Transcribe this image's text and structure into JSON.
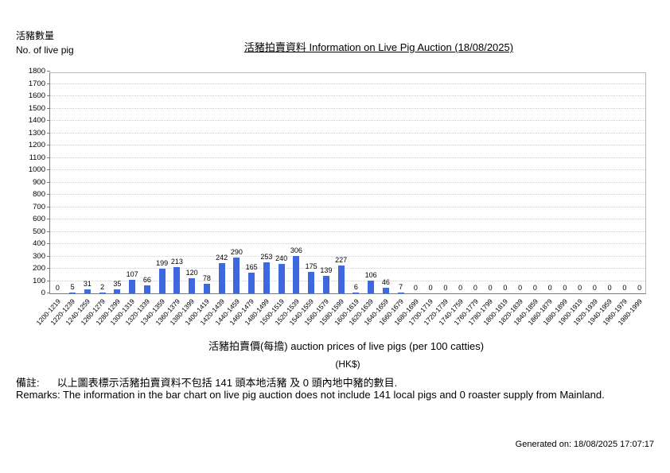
{
  "header": {
    "yaxis_zh": "活豬數量",
    "yaxis_en": "No. of live pig"
  },
  "title": "活豬拍賣資料 Information on Live Pig Auction (18/08/2025)",
  "chart_data": {
    "type": "bar",
    "title": "活豬拍賣資料 Information on Live Pig Auction (18/08/2025)",
    "categories": [
      "1200-1219",
      "1220-1239",
      "1240-1259",
      "1260-1279",
      "1280-1299",
      "1300-1319",
      "1320-1339",
      "1340-1359",
      "1360-1379",
      "1380-1399",
      "1400-1419",
      "1420-1439",
      "1440-1459",
      "1460-1479",
      "1480-1499",
      "1500-1519",
      "1520-1539",
      "1540-1559",
      "1560-1579",
      "1580-1599",
      "1600-1619",
      "1620-1639",
      "1640-1659",
      "1660-1679",
      "1680-1699",
      "1700-1719",
      "1720-1739",
      "1740-1759",
      "1760-1779",
      "1780-1799",
      "1800-1819",
      "1820-1839",
      "1840-1859",
      "1860-1879",
      "1880-1899",
      "1900-1919",
      "1920-1939",
      "1940-1959",
      "1960-1979",
      "1980-1999"
    ],
    "values": [
      0,
      5,
      31,
      2,
      35,
      107,
      66,
      199,
      213,
      120,
      78,
      242,
      290,
      165,
      253,
      240,
      306,
      175,
      139,
      227,
      6,
      106,
      46,
      7,
      0,
      0,
      0,
      0,
      0,
      0,
      0,
      0,
      0,
      0,
      0,
      0,
      0,
      0,
      0,
      0
    ],
    "ylabel_zh": "活豬數量",
    "ylabel_en": "No. of live pig",
    "xlabel": "活豬拍賣價(每擔) auction prices of live pigs (per 100 catties)",
    "unit": "(HK$)",
    "ylim": [
      0,
      1800
    ],
    "ytick_step": 100,
    "grid": true,
    "legend": "none",
    "bar_color": "#3e68e0"
  },
  "remarks": {
    "zh_label": "備註:",
    "zh_text": "以上圖表標示活豬拍賣資料不包括 141 頭本地活豬 及 0 頭內地中豬的數目.",
    "en": "Remarks: The information in the bar chart on live pig auction does not include 141 local pigs and 0 roaster supply from Mainland."
  },
  "footer": {
    "generated": "Generated on: 18/08/2025 17:07:17"
  }
}
